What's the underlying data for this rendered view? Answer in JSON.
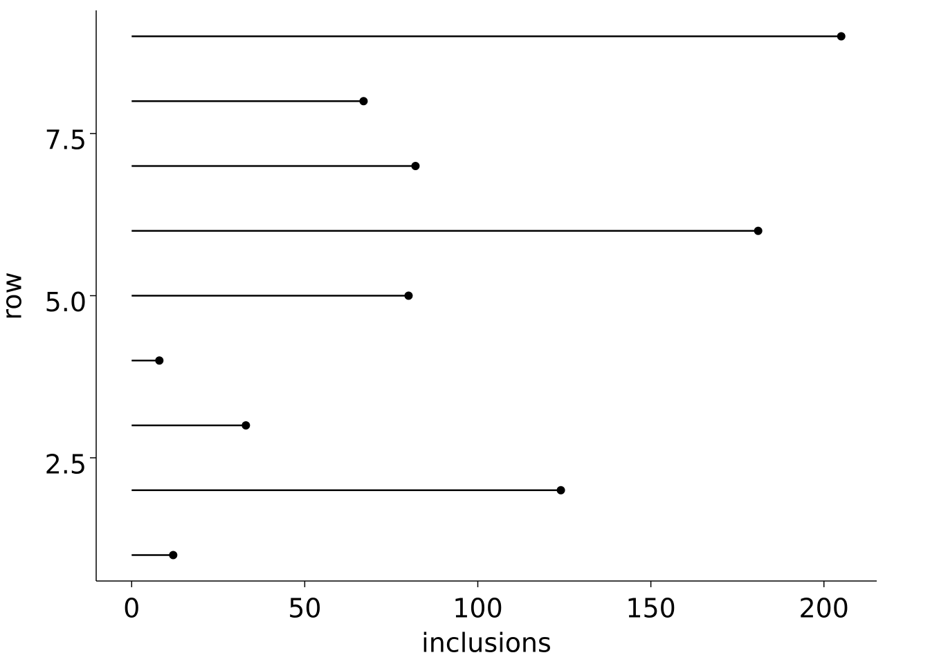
{
  "chart_data": {
    "type": "lollipop",
    "orientation": "horizontal",
    "x_label": "inclusions",
    "y_label": "row",
    "y": [
      1,
      2,
      3,
      4,
      5,
      6,
      7,
      8,
      9
    ],
    "values": [
      12,
      124,
      33,
      8,
      80,
      181,
      82,
      67,
      205
    ],
    "color": "#000000",
    "xlim": [
      -10.25,
      215.25
    ],
    "xticks": [
      0,
      50,
      100,
      150,
      200
    ],
    "ylim": [
      0.6,
      9.4
    ],
    "yticks": [
      2.5,
      {
        "value": 5,
        "label": "5.0"
      },
      7.5
    ]
  }
}
